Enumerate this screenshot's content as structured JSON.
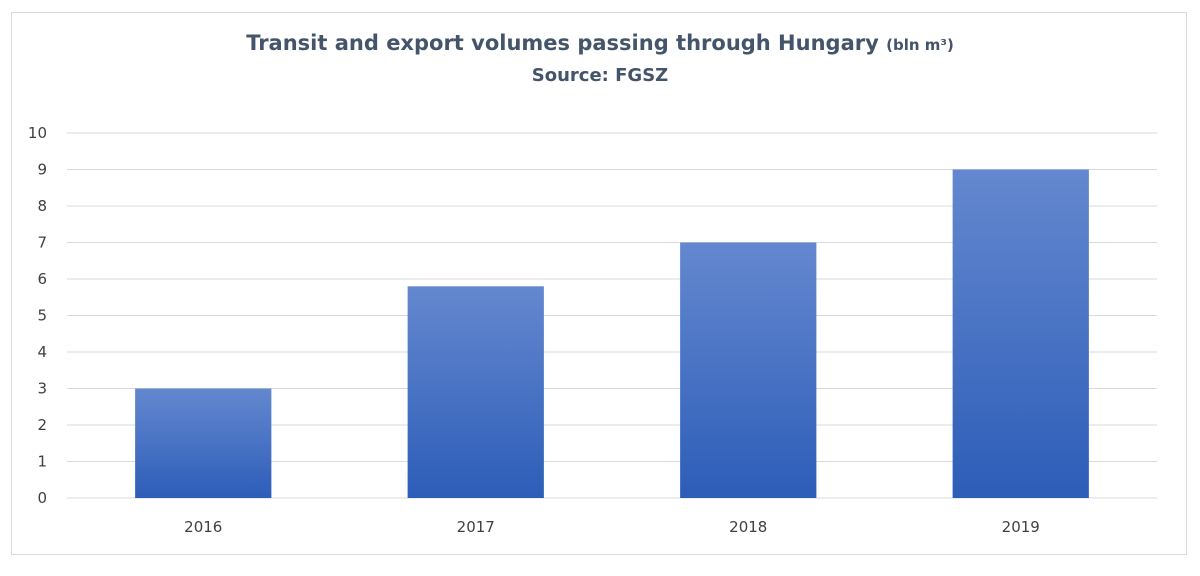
{
  "chart_data": {
    "type": "bar",
    "title": "Transit and export volumes passing through Hungary",
    "title_unit": "(bln m³)",
    "subtitle": "Source: FGSZ",
    "xlabel": "",
    "ylabel": "",
    "categories": [
      "2016",
      "2017",
      "2018",
      "2019"
    ],
    "values": [
      3.0,
      5.8,
      7.0,
      9.0
    ],
    "ylim": [
      0,
      10
    ],
    "yticks": [
      "0",
      "1",
      "2",
      "3",
      "4",
      "5",
      "6",
      "7",
      "8",
      "9",
      "10"
    ],
    "grid": true,
    "legend": "none",
    "colors": {
      "bar_top": "#6488cf",
      "bar_bottom": "#2d5db8",
      "grid": "#d9d9d9",
      "title": "#44546a"
    }
  }
}
